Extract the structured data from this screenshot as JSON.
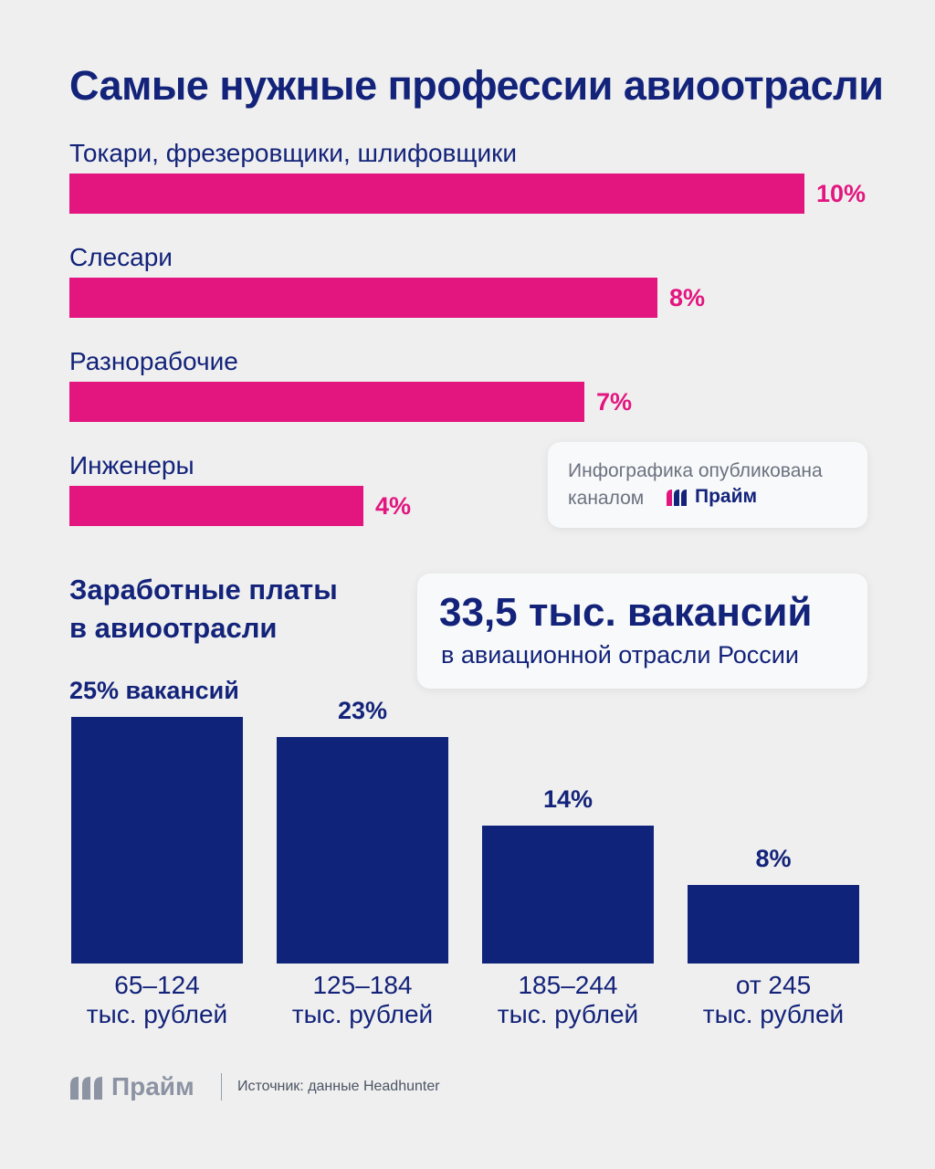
{
  "title": "Самые нужные профессии авиоотрасли",
  "colors": {
    "navy": "#13237a",
    "bar_navy": "#0f237a",
    "magenta": "#e3157f"
  },
  "publication_card": {
    "line1": "Инфографика опубликована",
    "line2": "каналом",
    "brand": "Прайм"
  },
  "vacancies_card": {
    "headline": "33,5 тыс. вакансий",
    "subline": "в авиационной отрасли России"
  },
  "salary_title_line1": "Заработные платы",
  "salary_title_line2": "в авиоотрасли",
  "footer": {
    "brand": "Прайм",
    "source": "Источник: данные Headhunter"
  },
  "chart_data": [
    {
      "type": "bar",
      "orientation": "horizontal",
      "categories": [
        "Токари, фрезеровщики, шлифовщики",
        "Слесари",
        "Разнорабочие",
        "Инженеры"
      ],
      "values": [
        10,
        8,
        7,
        4
      ],
      "value_labels": [
        "10%",
        "8%",
        "7%",
        "4%"
      ],
      "xlim": [
        0,
        10
      ]
    },
    {
      "type": "bar",
      "orientation": "vertical",
      "categories": [
        {
          "line1": "65–124",
          "line2": "тыс. рублей"
        },
        {
          "line1": "125–184",
          "line2": "тыс. рублей"
        },
        {
          "line1": "185–244",
          "line2": "тыс. рублей"
        },
        {
          "line1": "от 245",
          "line2": "тыс. рублей"
        }
      ],
      "values": [
        25,
        23,
        14,
        8
      ],
      "value_labels": [
        "25% вакансий",
        "23%",
        "14%",
        "8%"
      ],
      "ylim": [
        0,
        25
      ]
    }
  ]
}
